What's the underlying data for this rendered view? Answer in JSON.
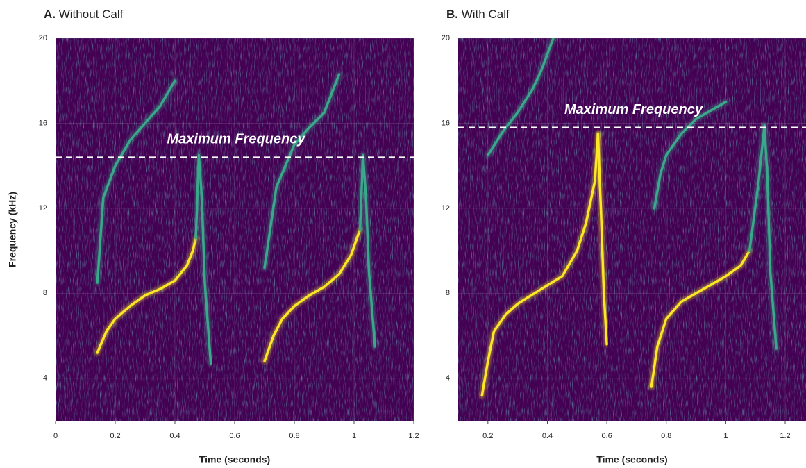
{
  "chart_data": [
    {
      "type": "line",
      "label": "A.",
      "title": "Without Calf",
      "xlabel": "Time (seconds)",
      "ylabel": "Frequency (kHz)",
      "xlim": [
        0,
        1.2
      ],
      "ylim": [
        2,
        20
      ],
      "xticks": [
        0,
        0.2,
        0.4,
        0.6,
        0.8,
        1,
        1.2
      ],
      "yticks": [
        4,
        8,
        12,
        16,
        20
      ],
      "grid": true,
      "background": "#440154",
      "max_frequency": 14.4,
      "annotation": "Maximum Frequency",
      "series": [
        {
          "color": "#fde725",
          "x": [
            0.14,
            0.17,
            0.2,
            0.25,
            0.3,
            0.35,
            0.4,
            0.44,
            0.46,
            0.47
          ],
          "values": [
            5.2,
            6.2,
            6.8,
            7.4,
            7.9,
            8.2,
            8.6,
            9.3,
            10.0,
            10.6
          ]
        },
        {
          "color": "#3aa88a",
          "x": [
            0.47,
            0.48,
            0.49,
            0.5,
            0.52
          ],
          "values": [
            10.6,
            14.5,
            12.5,
            8.5,
            4.7
          ]
        },
        {
          "color": "#3aa88a",
          "x": [
            0.14,
            0.16,
            0.2,
            0.25,
            0.3,
            0.35,
            0.4
          ],
          "values": [
            8.5,
            12.5,
            14.0,
            15.2,
            16.0,
            16.8,
            18.0
          ]
        },
        {
          "color": "#fde725",
          "x": [
            0.7,
            0.73,
            0.76,
            0.8,
            0.85,
            0.9,
            0.95,
            0.99,
            1.02
          ],
          "values": [
            4.8,
            6.0,
            6.8,
            7.4,
            7.9,
            8.3,
            8.9,
            9.8,
            11.0
          ]
        },
        {
          "color": "#3aa88a",
          "x": [
            1.02,
            1.03,
            1.04,
            1.05,
            1.07
          ],
          "values": [
            11.0,
            14.5,
            12.5,
            9.0,
            5.5
          ]
        },
        {
          "color": "#3aa88a",
          "x": [
            0.7,
            0.74,
            0.8,
            0.85,
            0.9,
            0.95
          ],
          "values": [
            9.2,
            13.0,
            15.0,
            15.8,
            16.5,
            18.3
          ]
        }
      ]
    },
    {
      "type": "line",
      "label": "B.",
      "title": "With Calf",
      "xlabel": "Time (seconds)",
      "xlim": [
        0.1,
        1.27
      ],
      "ylim": [
        2,
        20
      ],
      "xticks": [
        0.2,
        0.4,
        0.6,
        0.8,
        1,
        1.2
      ],
      "yticks": [
        4,
        8,
        12,
        16,
        20
      ],
      "grid": true,
      "background": "#440154",
      "max_frequency": 15.8,
      "annotation": "Maximum Frequency",
      "series": [
        {
          "color": "#fde725",
          "x": [
            0.18,
            0.2,
            0.22,
            0.26,
            0.3,
            0.38,
            0.45,
            0.5,
            0.53,
            0.56,
            0.57
          ],
          "values": [
            3.2,
            4.8,
            6.2,
            7.0,
            7.5,
            8.2,
            8.8,
            10.0,
            11.3,
            13.3,
            15.5
          ]
        },
        {
          "color": "#fde725",
          "x": [
            0.57,
            0.58,
            0.59,
            0.6
          ],
          "values": [
            15.5,
            12.0,
            8.0,
            5.6
          ]
        },
        {
          "color": "#3aa88a",
          "x": [
            0.2,
            0.25,
            0.3,
            0.35,
            0.38,
            0.42
          ],
          "values": [
            14.5,
            15.6,
            16.5,
            17.6,
            18.5,
            20.0
          ]
        },
        {
          "color": "#fde725",
          "x": [
            0.75,
            0.77,
            0.8,
            0.85,
            0.9,
            0.95,
            1.0,
            1.05,
            1.08
          ],
          "values": [
            3.6,
            5.5,
            6.8,
            7.6,
            8.0,
            8.4,
            8.8,
            9.3,
            10.0
          ]
        },
        {
          "color": "#3aa88a",
          "x": [
            1.08,
            1.11,
            1.13,
            1.14,
            1.15,
            1.17
          ],
          "values": [
            10.0,
            13.2,
            15.9,
            13.5,
            9.0,
            5.4
          ]
        },
        {
          "color": "#3aa88a",
          "x": [
            0.76,
            0.78,
            0.8,
            0.85,
            0.9,
            1.0
          ],
          "values": [
            12.0,
            13.6,
            14.5,
            15.5,
            16.2,
            17.0
          ]
        }
      ]
    }
  ]
}
